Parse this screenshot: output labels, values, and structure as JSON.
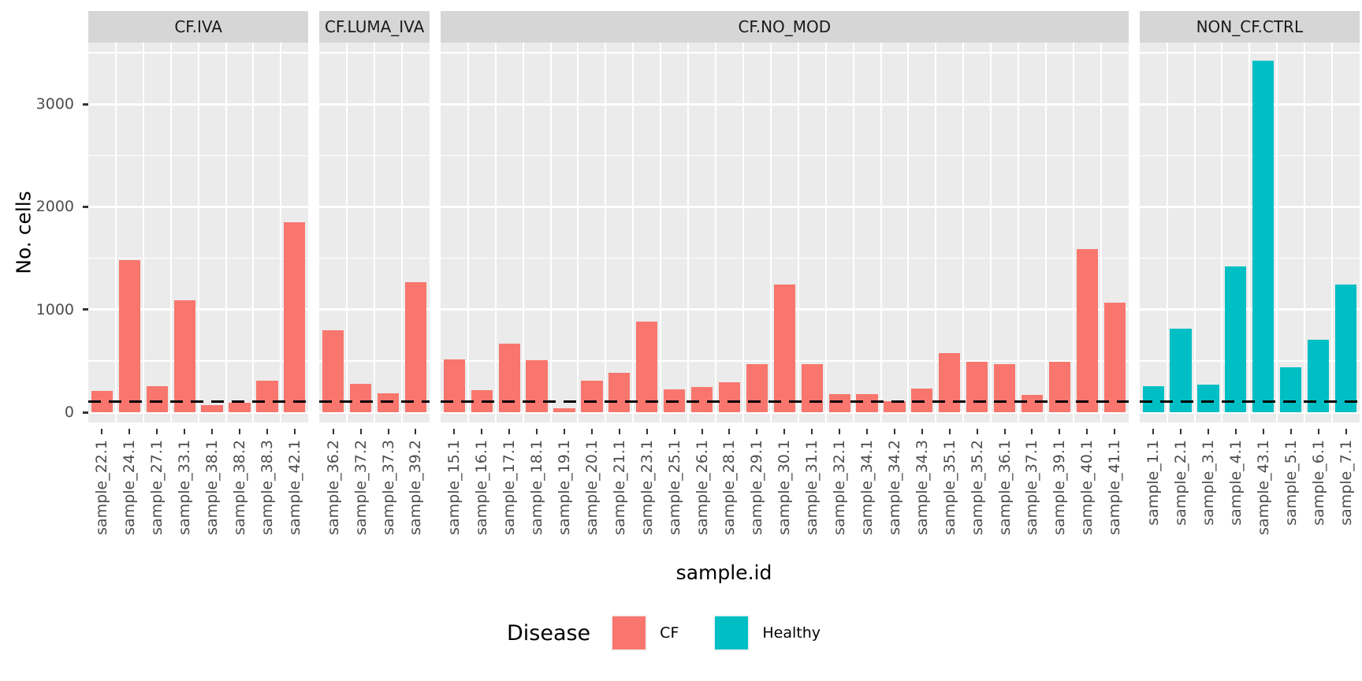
{
  "chart_data": {
    "type": "bar",
    "title": "",
    "xlabel": "sample.id",
    "ylabel": "No. cells",
    "ylim": [
      0,
      3600
    ],
    "yticks": [
      0,
      1000,
      2000,
      3000
    ],
    "yminor": [
      500,
      1500,
      2500,
      3500
    ],
    "grid": "on",
    "hline": {
      "y": 100,
      "style": "dashed",
      "color": "#000000"
    },
    "legend": {
      "title": "Disease",
      "position": "bottom",
      "entries": [
        {
          "label": "CF",
          "color": "#F8766D"
        },
        {
          "label": "Healthy",
          "color": "#00BFC4"
        }
      ]
    },
    "facets": [
      {
        "label": "CF.IVA",
        "disease": "CF",
        "color": "#F8766D",
        "samples": [
          "sample_22.1",
          "sample_24.1",
          "sample_27.1",
          "sample_33.1",
          "sample_38.1",
          "sample_38.2",
          "sample_38.3",
          "sample_42.1"
        ],
        "values": [
          210,
          1480,
          250,
          1090,
          70,
          90,
          310,
          1850
        ]
      },
      {
        "label": "CF.LUMA_IVA",
        "disease": "CF",
        "color": "#F8766D",
        "samples": [
          "sample_36.2",
          "sample_37.2",
          "sample_37.3",
          "sample_39.2"
        ],
        "values": [
          800,
          275,
          185,
          1265
        ]
      },
      {
        "label": "CF.NO_MOD",
        "disease": "CF",
        "color": "#F8766D",
        "samples": [
          "sample_15.1",
          "sample_16.1",
          "sample_17.1",
          "sample_18.1",
          "sample_19.1",
          "sample_20.1",
          "sample_21.1",
          "sample_23.1",
          "sample_25.1",
          "sample_26.1",
          "sample_28.1",
          "sample_29.1",
          "sample_30.1",
          "sample_31.1",
          "sample_32.1",
          "sample_34.1",
          "sample_34.2",
          "sample_34.3",
          "sample_35.1",
          "sample_35.2",
          "sample_36.1",
          "sample_37.1",
          "sample_39.1",
          "sample_40.1",
          "sample_41.1"
        ],
        "values": [
          515,
          215,
          665,
          510,
          35,
          305,
          385,
          885,
          225,
          245,
          290,
          470,
          1240,
          470,
          180,
          180,
          110,
          230,
          575,
          490,
          465,
          170,
          495,
          1590,
          1070
        ]
      },
      {
        "label": "NON_CF.CTRL",
        "disease": "Healthy",
        "color": "#00BFC4",
        "samples": [
          "sample_1.1",
          "sample_2.1",
          "sample_3.1",
          "sample_4.1",
          "sample_43.1",
          "sample_5.1",
          "sample_6.1",
          "sample_7.1"
        ],
        "values": [
          250,
          810,
          270,
          1420,
          3420,
          440,
          710,
          1245
        ]
      }
    ],
    "theme": {
      "panel_background": "#EBEBEB",
      "strip_background": "#D6D6D6",
      "gridline_color": "#FFFFFF",
      "tick_text_color": "#4D4D4D"
    }
  }
}
